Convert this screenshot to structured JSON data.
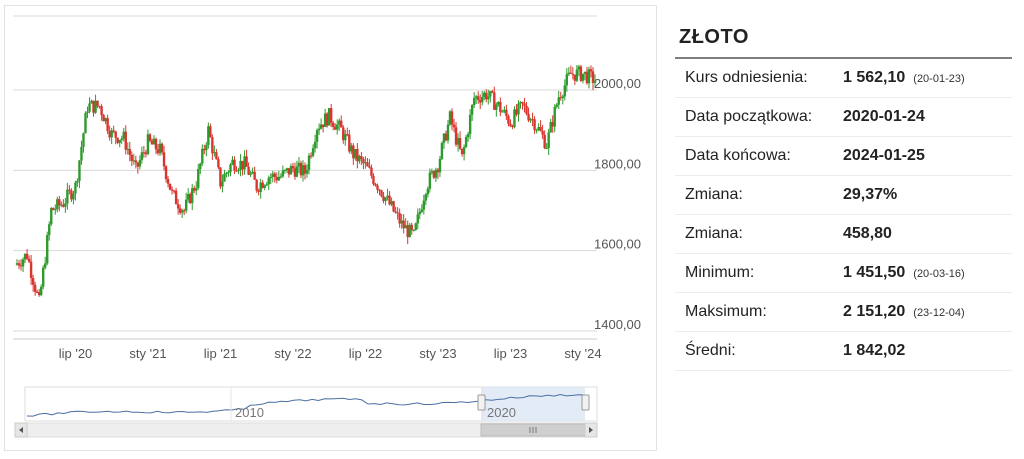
{
  "chart_data": {
    "type": "candlestick",
    "x_ticks": [
      "lip '20",
      "sty '21",
      "lip '21",
      "sty '22",
      "lip '22",
      "sty '23",
      "lip '23",
      "sty '24"
    ],
    "y_ticks": [
      "1400,00",
      "1600,00",
      "1800,00",
      "2000,00"
    ],
    "ylim": [
      1400,
      2200
    ],
    "grid": true,
    "colors": {
      "up": "#2e9a2e",
      "down": "#d9352f",
      "grid": "#d8d8d8",
      "navigator_line": "#4a6fa5"
    },
    "series": [
      {
        "values": [
          [
            "2020-01",
            1565
          ],
          [
            "2020-02",
            1590
          ],
          [
            "2020-03",
            1470
          ],
          [
            "2020-04",
            1700
          ],
          [
            "2020-05",
            1720
          ],
          [
            "2020-06",
            1760
          ],
          [
            "2020-07",
            1960
          ],
          [
            "2020-08",
            1960
          ],
          [
            "2020-09",
            1890
          ],
          [
            "2020-10",
            1880
          ],
          [
            "2020-11",
            1800
          ],
          [
            "2020-12",
            1870
          ],
          [
            "2021-01",
            1850
          ],
          [
            "2021-02",
            1740
          ],
          [
            "2021-03",
            1700
          ],
          [
            "2021-04",
            1770
          ],
          [
            "2021-05",
            1900
          ],
          [
            "2021-06",
            1770
          ],
          [
            "2021-07",
            1820
          ],
          [
            "2021-08",
            1815
          ],
          [
            "2021-09",
            1760
          ],
          [
            "2021-10",
            1785
          ],
          [
            "2021-11",
            1785
          ],
          [
            "2021-12",
            1805
          ],
          [
            "2022-01",
            1795
          ],
          [
            "2022-02",
            1910
          ],
          [
            "2022-03",
            1935
          ],
          [
            "2022-04",
            1900
          ],
          [
            "2022-05",
            1840
          ],
          [
            "2022-06",
            1810
          ],
          [
            "2022-07",
            1765
          ],
          [
            "2022-08",
            1715
          ],
          [
            "2022-09",
            1665
          ],
          [
            "2022-10",
            1635
          ],
          [
            "2022-11",
            1760
          ],
          [
            "2022-12",
            1815
          ],
          [
            "2023-01",
            1930
          ],
          [
            "2023-02",
            1830
          ],
          [
            "2023-03",
            1980
          ],
          [
            "2023-04",
            1990
          ],
          [
            "2023-05",
            1960
          ],
          [
            "2023-06",
            1920
          ],
          [
            "2023-07",
            1960
          ],
          [
            "2023-08",
            1920
          ],
          [
            "2023-09",
            1865
          ],
          [
            "2023-10",
            1985
          ],
          [
            "2023-11",
            2040
          ],
          [
            "2023-12",
            2040
          ],
          [
            "2024-01",
            2025
          ]
        ]
      }
    ],
    "navigator": {
      "x_ticks": [
        "2010",
        "2020"
      ]
    }
  },
  "stats": {
    "title": "ZŁOTO",
    "rows": [
      {
        "label": "Kurs odniesienia:",
        "value": "1 562,10",
        "date": "(20-01-23)"
      },
      {
        "label": "Data początkowa:",
        "value": "2020-01-24",
        "date": ""
      },
      {
        "label": "Data końcowa:",
        "value": "2024-01-25",
        "date": ""
      },
      {
        "label": "Zmiana:",
        "value": "29,37%",
        "date": ""
      },
      {
        "label": "Zmiana:",
        "value": "458,80",
        "date": ""
      },
      {
        "label": "Minimum:",
        "value": "1 451,50",
        "date": "(20-03-16)"
      },
      {
        "label": "Maksimum:",
        "value": "2 151,20",
        "date": "(23-12-04)"
      },
      {
        "label": "Średni:",
        "value": "1 842,02",
        "date": ""
      }
    ]
  }
}
